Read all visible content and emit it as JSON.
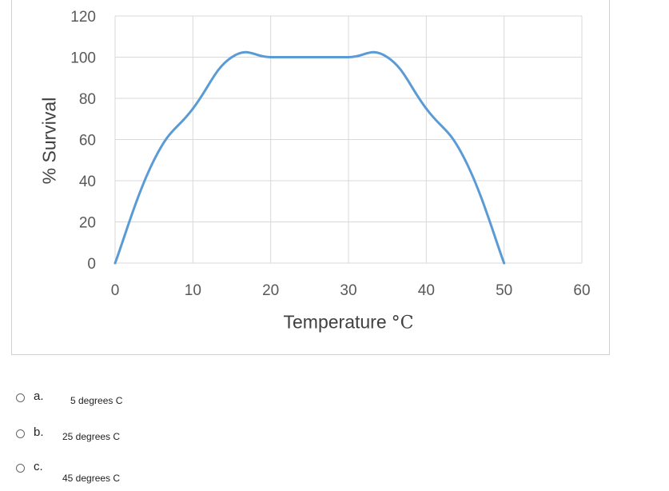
{
  "chart_data": {
    "type": "line",
    "xlabel": "Temperature",
    "xlabel_unit": "°C",
    "ylabel": "% Survival",
    "xlim": [
      0,
      60
    ],
    "ylim": [
      0,
      120
    ],
    "x_ticks": [
      "0",
      "10",
      "20",
      "30",
      "40",
      "50",
      "60"
    ],
    "y_ticks": [
      "0",
      "20",
      "40",
      "60",
      "80",
      "100",
      "120"
    ],
    "grid": true,
    "series": [
      {
        "color": "#5b9bd5",
        "x": [
          0,
          5,
          10,
          15,
          20,
          25,
          30,
          35,
          40,
          45,
          50
        ],
        "values": [
          0,
          50,
          75,
          100,
          100,
          100,
          100,
          100,
          75,
          50,
          0
        ]
      }
    ]
  },
  "options": [
    {
      "letter": "a.",
      "text": "5 degrees C"
    },
    {
      "letter": "b.",
      "text": "25 degrees C"
    },
    {
      "letter": "c.",
      "text": "45 degrees C"
    }
  ]
}
